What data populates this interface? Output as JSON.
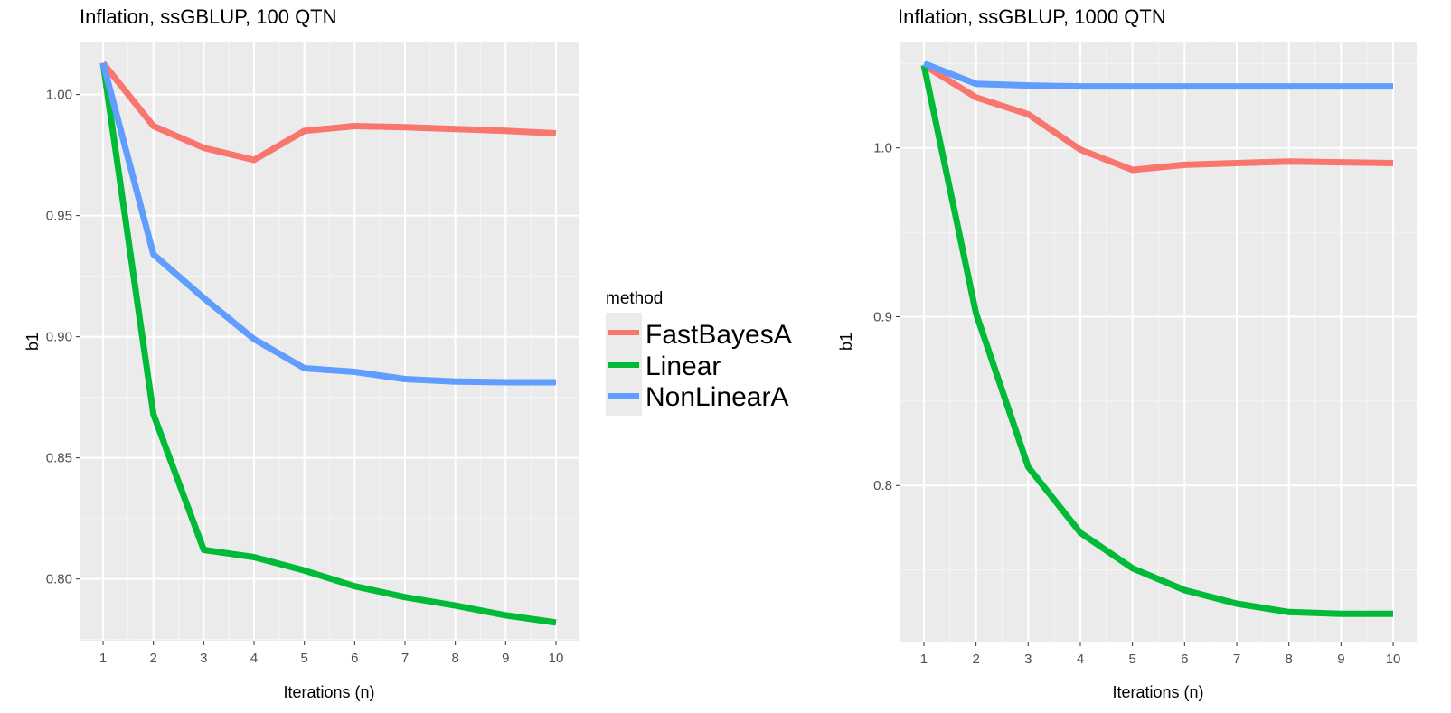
{
  "legend": {
    "title": "method",
    "entries": [
      {
        "label": "FastBayesA",
        "color": "#F8766D"
      },
      {
        "label": "Linear",
        "color": "#00BA38"
      },
      {
        "label": "NonLinearA",
        "color": "#619CFF"
      }
    ]
  },
  "chart_data": [
    {
      "type": "line",
      "title": "Inflation, ssGBLUP, 100 QTN",
      "xlabel": "Iterations (n)",
      "ylabel": "b1",
      "x": [
        1,
        2,
        3,
        4,
        5,
        6,
        7,
        8,
        9,
        10
      ],
      "xticks": [
        "1",
        "2",
        "3",
        "4",
        "5",
        "6",
        "7",
        "8",
        "9",
        "10"
      ],
      "yticks": [
        "0.80",
        "0.85",
        "0.90",
        "0.95",
        "1.00"
      ],
      "ytick_values": [
        0.8,
        0.85,
        0.9,
        0.95,
        1.0
      ],
      "xlim": [
        0.55,
        10.45
      ],
      "ylim": [
        0.7745,
        1.0215
      ],
      "grid": true,
      "series": [
        {
          "name": "FastBayesA",
          "color": "#F8766D",
          "values": [
            1.013,
            0.987,
            0.978,
            0.973,
            0.985,
            0.987,
            0.9865,
            0.9858,
            0.985,
            0.984
          ]
        },
        {
          "name": "Linear",
          "color": "#00BA38",
          "values": [
            1.013,
            0.868,
            0.812,
            0.809,
            0.8035,
            0.797,
            0.7925,
            0.789,
            0.785,
            0.782
          ]
        },
        {
          "name": "NonLinearA",
          "color": "#619CFF",
          "values": [
            1.013,
            0.934,
            0.916,
            0.899,
            0.887,
            0.8855,
            0.8825,
            0.8815,
            0.8812,
            0.8812
          ]
        }
      ]
    },
    {
      "type": "line",
      "title": "Inflation, ssGBLUP, 1000 QTN",
      "xlabel": "Iterations (n)",
      "ylabel": "b1",
      "x": [
        1,
        2,
        3,
        4,
        5,
        6,
        7,
        8,
        9,
        10
      ],
      "xticks": [
        "1",
        "2",
        "3",
        "4",
        "5",
        "6",
        "7",
        "8",
        "9",
        "10"
      ],
      "yticks": [
        "0.8",
        "0.9",
        "1.0"
      ],
      "ytick_values": [
        0.8,
        0.9,
        1.0
      ],
      "xlim": [
        0.55,
        10.45
      ],
      "ylim": [
        0.7075,
        1.0625
      ],
      "grid": true,
      "series": [
        {
          "name": "FastBayesA",
          "color": "#F8766D",
          "values": [
            1.049,
            1.03,
            1.02,
            0.999,
            0.987,
            0.99,
            0.991,
            0.992,
            0.9915,
            0.991
          ]
        },
        {
          "name": "Linear",
          "color": "#00BA38",
          "values": [
            1.049,
            0.902,
            0.811,
            0.772,
            0.751,
            0.738,
            0.73,
            0.725,
            0.724,
            0.724
          ]
        },
        {
          "name": "NonLinearA",
          "color": "#619CFF",
          "values": [
            1.05,
            1.038,
            1.037,
            1.0365,
            1.0365,
            1.0365,
            1.0365,
            1.0365,
            1.0365,
            1.0365
          ]
        }
      ]
    }
  ]
}
